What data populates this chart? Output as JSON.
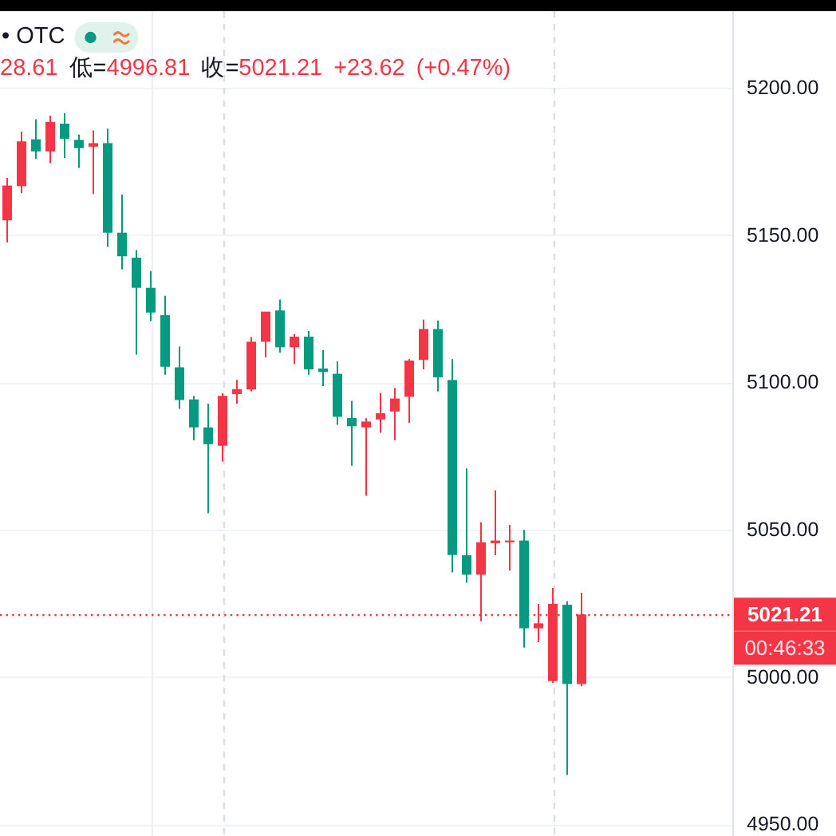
{
  "chart_data": {
    "type": "candlestick",
    "categories": [
      null,
      null,
      null,
      null,
      null,
      null,
      null,
      null,
      null,
      null,
      null,
      null,
      null,
      null,
      null,
      null,
      null,
      null,
      null,
      null,
      null,
      null,
      null,
      null,
      null,
      null,
      null,
      null,
      null,
      null,
      null,
      null,
      null,
      null,
      null,
      null,
      null,
      null,
      null,
      null,
      null,
      null,
      null,
      null,
      null,
      null,
      null,
      null,
      null,
      null,
      null
    ],
    "ohlc": [
      [
        5155.0,
        5169.4,
        5147.5,
        5166.8
      ],
      [
        5166.6,
        5185.1,
        5164.2,
        5181.8
      ],
      [
        5182.5,
        5189.3,
        5175.9,
        5178.4
      ],
      [
        5178.4,
        5190.5,
        5174.4,
        5188.4
      ],
      [
        5187.8,
        5191.4,
        5176.2,
        5182.7
      ],
      [
        5182.3,
        5184.1,
        5172.8,
        5179.5
      ],
      [
        5180.0,
        5185.5,
        5163.9,
        5181.2
      ],
      [
        5181.2,
        5186.1,
        5146.0,
        5150.8
      ],
      [
        5150.8,
        5163.7,
        5138.3,
        5142.8
      ],
      [
        5142.3,
        5144.9,
        5109.4,
        5132.1
      ],
      [
        5132.1,
        5137.8,
        5120.8,
        5123.7
      ],
      [
        5122.8,
        5129.4,
        5102.6,
        5105.3
      ],
      [
        5105.1,
        5112.1,
        5091.0,
        5094.0
      ],
      [
        5094.2,
        5095.4,
        5080.3,
        5084.7
      ],
      [
        5084.7,
        5092.8,
        5055.6,
        5079.0
      ],
      [
        5078.5,
        5096.3,
        5073.1,
        5095.4
      ],
      [
        5096.0,
        5100.8,
        5092.8,
        5097.7
      ],
      [
        5097.6,
        5115.4,
        5096.9,
        5113.8
      ],
      [
        5113.8,
        5124.0,
        5108.5,
        5124.0
      ],
      [
        5124.4,
        5128.1,
        5110.1,
        5111.9
      ],
      [
        5111.9,
        5116.4,
        5106.2,
        5115.5
      ],
      [
        5115.5,
        5117.4,
        5102.6,
        5104.4
      ],
      [
        5104.7,
        5111.0,
        5098.7,
        5103.5
      ],
      [
        5102.9,
        5107.1,
        5085.6,
        5088.3
      ],
      [
        5087.9,
        5093.7,
        5071.7,
        5085.1
      ],
      [
        5084.7,
        5087.8,
        5061.5,
        5086.7
      ],
      [
        5087.4,
        5096.4,
        5082.9,
        5089.5
      ],
      [
        5090.1,
        5098.1,
        5080.3,
        5094.5
      ],
      [
        5095.1,
        5107.9,
        5086.2,
        5107.4
      ],
      [
        5107.6,
        5121.3,
        5104.4,
        5118.1
      ],
      [
        5118.1,
        5121.0,
        5096.9,
        5101.7
      ],
      [
        5100.8,
        5107.9,
        5035.5,
        5041.4
      ],
      [
        5041.3,
        5070.8,
        5032.0,
        5034.7
      ],
      [
        5034.7,
        5052.5,
        5018.9,
        5045.7
      ],
      [
        5045.4,
        5063.3,
        5041.3,
        5046.3
      ],
      [
        5045.7,
        5051.6,
        5036.1,
        5046.3
      ],
      [
        5046.3,
        5049.9,
        5010.0,
        5016.5
      ],
      [
        5016.5,
        5024.8,
        5011.8,
        5018.2
      ],
      [
        4998.6,
        5030.2,
        4998.0,
        5024.8
      ],
      [
        5024.5,
        5025.7,
        4966.7,
        4997.59
      ],
      [
        4997.59,
        5028.61,
        4996.81,
        5021.21
      ],
      null,
      null,
      null,
      null,
      null,
      null,
      null,
      null,
      null,
      null
    ],
    "colors": [
      "#f23645",
      "#f23645",
      "#089981",
      "#f23645",
      "#089981",
      "#089981",
      "#f23645",
      "#089981",
      "#089981",
      "#089981",
      "#089981",
      "#089981",
      "#089981",
      "#089981",
      "#089981",
      "#f23645",
      "#f23645",
      "#f23645",
      "#f23645",
      "#089981",
      "#f23645",
      "#089981",
      "#089981",
      "#089981",
      "#089981",
      "#f23645",
      "#f23645",
      "#f23645",
      "#f23645",
      "#f23645",
      "#089981",
      "#089981",
      "#089981",
      "#f23645",
      "#f23645",
      "#f23645",
      "#089981",
      "#f23645",
      "#f23645",
      "#089981",
      "#f23645",
      null,
      null,
      null,
      null,
      null,
      null,
      null,
      null,
      null,
      null
    ],
    "ylim": [
      4946,
      5226
    ],
    "yticks": [
      {
        "value": 4950,
        "label": "4950.00"
      },
      {
        "value": 5000,
        "label": "5000.00"
      },
      {
        "value": 5050,
        "label": "5050.00"
      },
      {
        "value": 5100,
        "label": "5100.00"
      },
      {
        "value": 5150,
        "label": "5150.00"
      },
      {
        "value": 5200,
        "label": "5200.00"
      }
    ],
    "grid": "y",
    "ref_lines": [
      {
        "axis": "y",
        "value": 5021.21,
        "label": "5021.21",
        "color": "#f23645",
        "line_style": "dotted"
      }
    ],
    "annotations": [
      "• OTC",
      "28.61 低=4996.81 收=5021.21 +23.62 (+0.47%)",
      "00:46:33"
    ]
  }
}
